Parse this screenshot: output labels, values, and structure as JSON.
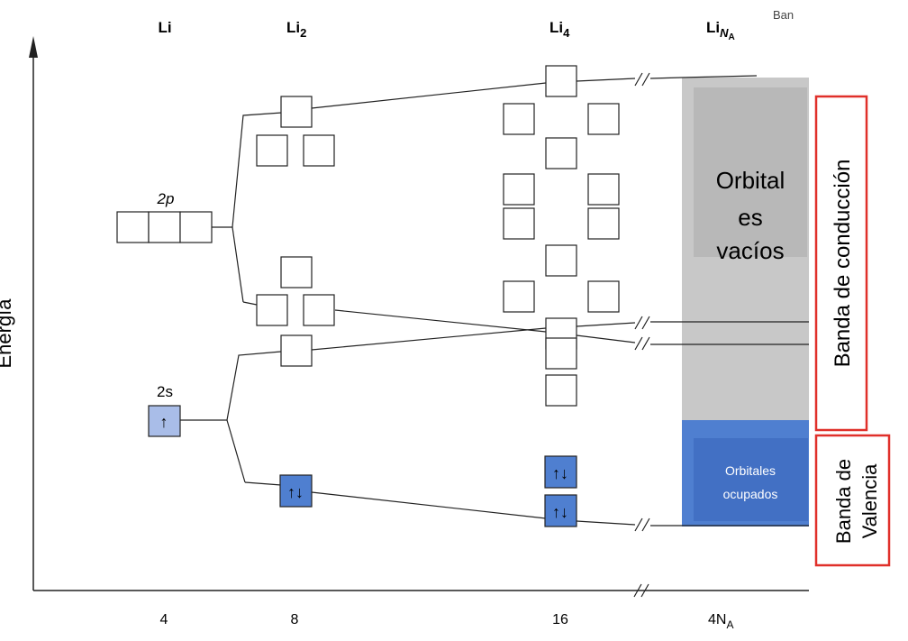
{
  "headers": {
    "li": "Li",
    "li2_base": "Li",
    "li2_sub": "2",
    "li4_base": "Li",
    "li4_sub": "4",
    "lina_base": "Li",
    "lina_sub": "N",
    "lina_subsub": "A",
    "partial": "Ban"
  },
  "axis": {
    "ylabel": "Energía",
    "ticks": [
      "4",
      "8",
      "16"
    ],
    "tick_last_base": "4N",
    "tick_last_sub": "A"
  },
  "orbital_labels": {
    "p": "2p",
    "s": "2s"
  },
  "spins": {
    "li_2s": "↑",
    "paired": "↑↓"
  },
  "overlays": {
    "empty_line1": "Orbital",
    "empty_line2": "es",
    "empty_line3": "vacíos",
    "occupied_line1": "Orbitales",
    "occupied_line2": "ocupados",
    "conduction": "Banda de conducción",
    "valence_line1": "Banda de",
    "valence_line2": "Valencia"
  },
  "colors": {
    "empty_band": "#c8c8c8",
    "occupied_band": "#4f7fd0",
    "occupied_inner": "#4270c4",
    "filled_box": "#4f7fd0",
    "li_box": "#a9bde8",
    "red_frame": "#e0302a"
  }
}
